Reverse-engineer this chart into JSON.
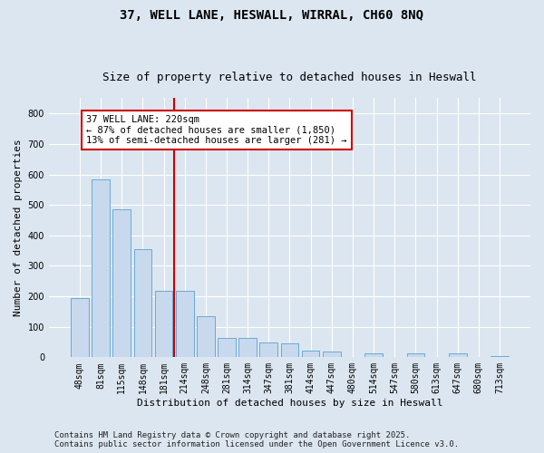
{
  "title": "37, WELL LANE, HESWALL, WIRRAL, CH60 8NQ",
  "subtitle": "Size of property relative to detached houses in Heswall",
  "xlabel": "Distribution of detached houses by size in Heswall",
  "ylabel": "Number of detached properties",
  "categories": [
    "48sqm",
    "81sqm",
    "115sqm",
    "148sqm",
    "181sqm",
    "214sqm",
    "248sqm",
    "281sqm",
    "314sqm",
    "347sqm",
    "381sqm",
    "414sqm",
    "447sqm",
    "480sqm",
    "514sqm",
    "547sqm",
    "580sqm",
    "613sqm",
    "647sqm",
    "680sqm",
    "713sqm"
  ],
  "values": [
    193,
    585,
    487,
    355,
    218,
    218,
    135,
    63,
    63,
    50,
    45,
    22,
    20,
    0,
    13,
    0,
    13,
    0,
    13,
    0,
    5
  ],
  "bar_color": "#c8d9ee",
  "bar_edge_color": "#6aaad4",
  "fig_bg_color": "#dce6f0",
  "ax_bg_color": "#dce6f0",
  "grid_color": "#ffffff",
  "vline_color": "#cc0000",
  "vline_x_index": 5,
  "annotation_line1": "37 WELL LANE: 220sqm",
  "annotation_line2": "← 87% of detached houses are smaller (1,850)",
  "annotation_line3": "13% of semi-detached houses are larger (281) →",
  "annotation_box_color": "#cc0000",
  "ylim": [
    0,
    850
  ],
  "yticks": [
    0,
    100,
    200,
    300,
    400,
    500,
    600,
    700,
    800
  ],
  "title_fontsize": 10,
  "subtitle_fontsize": 9,
  "xlabel_fontsize": 8,
  "ylabel_fontsize": 8,
  "tick_fontsize": 7,
  "annot_fontsize": 7.5,
  "footer_fontsize": 6.5,
  "footer": "Contains HM Land Registry data © Crown copyright and database right 2025.\nContains public sector information licensed under the Open Government Licence v3.0."
}
